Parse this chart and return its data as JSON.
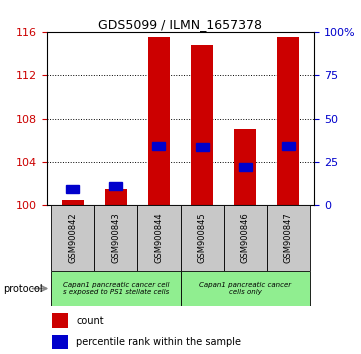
{
  "title": "GDS5099 / ILMN_1657378",
  "samples": [
    "GSM900842",
    "GSM900843",
    "GSM900844",
    "GSM900845",
    "GSM900846",
    "GSM900847"
  ],
  "red_values": [
    100.5,
    101.5,
    115.5,
    114.8,
    107.0,
    115.5
  ],
  "blue_values": [
    101.5,
    101.8,
    105.5,
    105.4,
    103.5,
    105.5
  ],
  "y_min": 100,
  "y_max": 116,
  "y_ticks": [
    100,
    104,
    108,
    112,
    116
  ],
  "y2_ticks": [
    0,
    25,
    50,
    75,
    100
  ],
  "group1_label": "Capan1 pancreatic cancer cell\ns exposed to PS1 stellate cells",
  "group2_label": "Capan1 pancreatic cancer\ncells only",
  "group_color": "#90ee90",
  "protocol_label": "protocol",
  "legend_red": "count",
  "legend_blue": "percentile rank within the sample",
  "red_color": "#cc0000",
  "blue_color": "#0000cc",
  "bar_width": 0.5,
  "background_color": "#ffffff",
  "tick_color_left": "#cc0000",
  "tick_color_right": "#0000cc",
  "gray_color": "#c8c8c8"
}
